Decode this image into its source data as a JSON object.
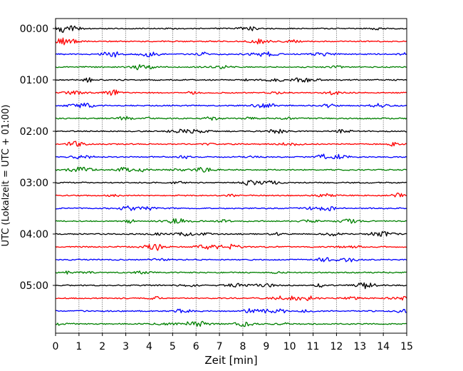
{
  "chart_data": {
    "type": "line",
    "title": "",
    "xlabel": "Zeit  [min]",
    "ylabel": "UTC (Lokalzeit = UTC + 01:00)",
    "xlim": [
      0,
      15
    ],
    "xticks": [
      "0",
      "1",
      "2",
      "3",
      "4",
      "5",
      "6",
      "7",
      "8",
      "9",
      "10",
      "11",
      "12",
      "13",
      "14",
      "15"
    ],
    "yticks": [
      "00:00",
      "01:00",
      "02:00",
      "03:00",
      "04:00",
      "05:00"
    ],
    "grid": "vertical dotted lines at each minute",
    "trace_minutes": 15,
    "trace_count": 24,
    "trace_start_times": [
      "00:00",
      "00:15",
      "00:30",
      "00:45",
      "01:00",
      "01:15",
      "01:30",
      "01:45",
      "02:00",
      "02:15",
      "02:30",
      "02:45",
      "03:00",
      "03:15",
      "03:30",
      "03:45",
      "04:00",
      "04:15",
      "04:30",
      "04:45",
      "05:00",
      "05:15",
      "05:30",
      "05:45"
    ],
    "trace_colors": [
      "#000000",
      "#ff0000",
      "#0000ff",
      "#008000"
    ]
  }
}
